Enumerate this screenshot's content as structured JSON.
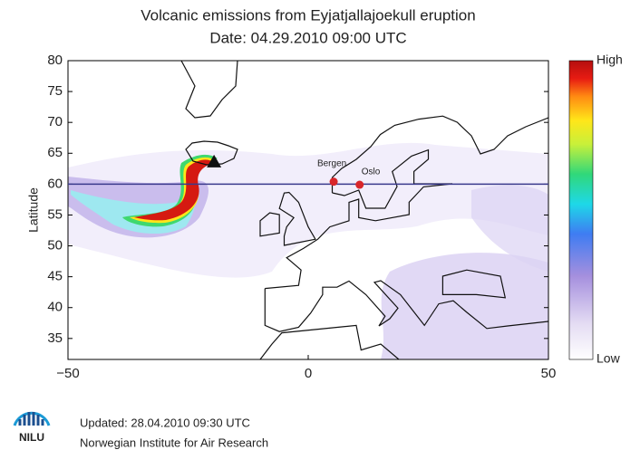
{
  "title": [
    "Volcanic emissions from Eyjatjallajoekull eruption",
    "Date: 04.29.2010 09:00 UTC"
  ],
  "chart_data": {
    "type": "map",
    "ylabel": "Latitude",
    "xlim": [
      -50,
      50
    ],
    "xticks": [
      {
        "value": -50,
        "label": "−50"
      },
      0,
      50
    ],
    "ylim": [
      31.6,
      80
    ],
    "yticks": [
      35,
      40,
      45,
      50,
      55,
      60,
      65,
      70,
      75,
      80
    ],
    "reference_lat": 60,
    "places": [
      {
        "name": "Bergen",
        "lon": 5.3,
        "lat": 60.4
      },
      {
        "name": "Oslo",
        "lon": 10.7,
        "lat": 59.9
      }
    ],
    "volcano": {
      "lon": -19.6,
      "lat": 63.6
    },
    "colorbar": {
      "high": "High",
      "low": "Low"
    }
  },
  "footer": {
    "logo": "NILU",
    "updated": "Updated: 28.04.2010 09:30 UTC",
    "institute": "Norwegian Institute for Air Research"
  }
}
